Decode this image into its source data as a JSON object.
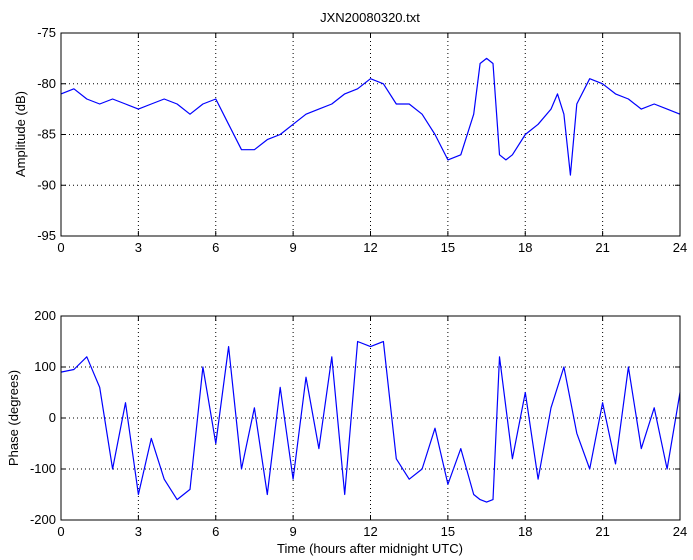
{
  "title": "JXN20080320.txt",
  "chart_data": [
    {
      "type": "line",
      "title": "JXN20080320.txt",
      "xlabel": "",
      "ylabel": "Amplitude (dB)",
      "xlim": [
        0,
        24
      ],
      "ylim": [
        -95,
        -75
      ],
      "xticks": [
        0,
        3,
        6,
        9,
        12,
        15,
        18,
        21,
        24
      ],
      "yticks": [
        -95,
        -90,
        -85,
        -80,
        -75
      ],
      "grid": "dotted",
      "series_color": "#0000ff",
      "x": [
        0,
        0.5,
        1,
        1.5,
        2,
        2.5,
        3,
        3.5,
        4,
        4.5,
        5,
        5.5,
        6,
        6.5,
        7,
        7.5,
        8,
        8.5,
        9,
        9.5,
        10,
        10.5,
        11,
        11.5,
        12,
        12.5,
        13,
        13.5,
        14,
        14.5,
        15,
        15.5,
        16,
        16.25,
        16.5,
        16.75,
        17,
        17.25,
        17.5,
        18,
        18.5,
        19,
        19.25,
        19.5,
        19.75,
        20,
        20.5,
        21,
        21.5,
        22,
        22.5,
        23,
        23.5,
        24
      ],
      "values": [
        -81,
        -80.5,
        -81.5,
        -82,
        -81.5,
        -82,
        -82.5,
        -82,
        -81.5,
        -82,
        -83,
        -82,
        -81.5,
        -84,
        -86.5,
        -86.5,
        -85.5,
        -85,
        -84,
        -83,
        -82.5,
        -82,
        -81,
        -80.5,
        -79.5,
        -80,
        -82,
        -82,
        -83,
        -85,
        -87.5,
        -87,
        -83,
        -78,
        -77.5,
        -78,
        -87,
        -87.5,
        -87,
        -85,
        -84,
        -82.5,
        -81,
        -83,
        -89,
        -82,
        -79.5,
        -80,
        -81,
        -81.5,
        -82.5,
        -82,
        -82.5,
        -83
      ]
    },
    {
      "type": "line",
      "title": "",
      "xlabel": "Time (hours after midnight UTC)",
      "ylabel": "Phase (degrees)",
      "xlim": [
        0,
        24
      ],
      "ylim": [
        -200,
        200
      ],
      "xticks": [
        0,
        3,
        6,
        9,
        12,
        15,
        18,
        21,
        24
      ],
      "yticks": [
        -200,
        -100,
        0,
        100,
        200
      ],
      "grid": "dotted",
      "series_color": "#0000ff",
      "x": [
        0,
        0.5,
        1,
        1.5,
        2,
        2.5,
        3,
        3.5,
        4,
        4.5,
        5,
        5.5,
        6,
        6.5,
        7,
        7.5,
        8,
        8.5,
        9,
        9.5,
        10,
        10.5,
        11,
        11.5,
        12,
        12.5,
        13,
        13.5,
        14,
        14.5,
        15,
        15.5,
        16,
        16.25,
        16.5,
        16.75,
        17,
        17.5,
        18,
        18.5,
        19,
        19.5,
        20,
        20.5,
        21,
        21.5,
        22,
        22.5,
        23,
        23.5,
        24
      ],
      "values": [
        90,
        95,
        120,
        60,
        -100,
        30,
        -150,
        -40,
        -120,
        -160,
        -140,
        100,
        -50,
        140,
        -100,
        20,
        -150,
        60,
        -120,
        80,
        -60,
        120,
        -150,
        150,
        140,
        150,
        -80,
        -120,
        -100,
        -20,
        -130,
        -60,
        -150,
        -160,
        -165,
        -160,
        120,
        -80,
        50,
        -120,
        20,
        100,
        -30,
        -100,
        30,
        -90,
        100,
        -60,
        20,
        -100,
        50
      ]
    }
  ]
}
